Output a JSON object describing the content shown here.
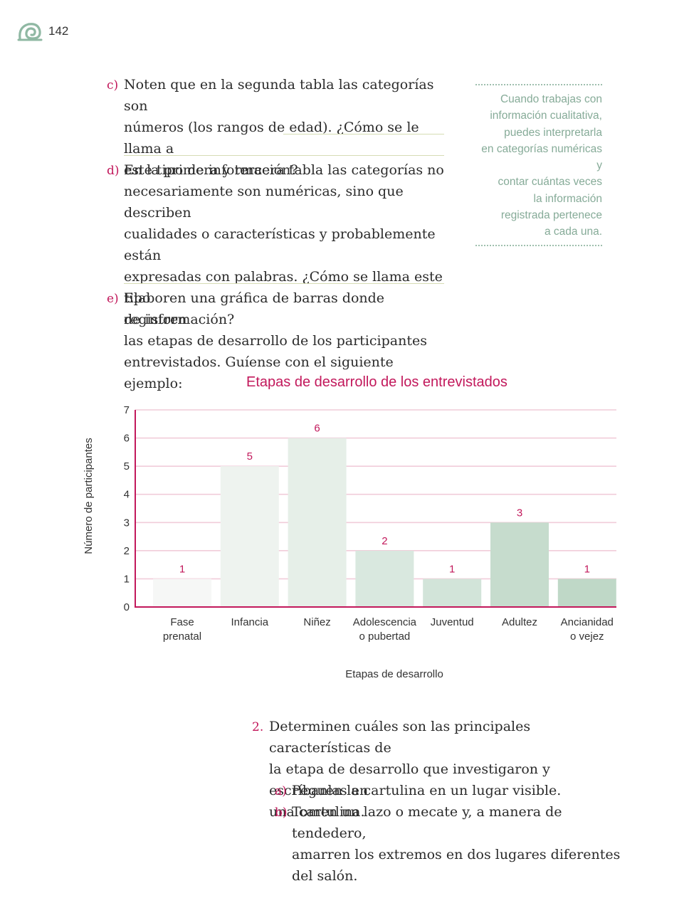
{
  "header": {
    "page_number": "142"
  },
  "items": {
    "c": {
      "marker": "c)",
      "lines": [
        "Noten que en la segunda tabla las categorías son",
        "números (los rangos de edad). ¿Cómo se le llama a",
        "este tipo de información?"
      ]
    },
    "d": {
      "marker": "d)",
      "lines": [
        "En la primera y tercera tabla las categorías no",
        "necesariamente son numéricas, sino que describen",
        "cualidades o características y probablemente están",
        "expresadas con palabras. ¿Cómo se llama este tipo",
        "de información?"
      ]
    },
    "e": {
      "marker": "e)",
      "lines": [
        "Elaboren una gráfica de barras donde registren",
        "las etapas de desarrollo de los participantes",
        "entrevistados. Guíense con el siguiente ejemplo:"
      ]
    }
  },
  "sidebar": {
    "lines": [
      "Cuando trabajas con",
      "información cualitativa,",
      "puedes interpretarla",
      "en categorías numéricas y",
      "contar cuántas veces",
      "la información",
      "registrada pertenece",
      "a cada una."
    ]
  },
  "chart_data": {
    "type": "bar",
    "title": "Etapas de desarrollo de los entrevistados",
    "xlabel": "Etapas de desarrollo",
    "ylabel": "Número de participantes",
    "categories": [
      "Fase prenatal",
      "Infancia",
      "Niñez",
      "Adolescencia o pubertad",
      "Juventud",
      "Adultez",
      "Ancianidad o vejez"
    ],
    "category_lines": [
      [
        "Fase",
        "prenatal"
      ],
      [
        "Infancia"
      ],
      [
        "Niñez"
      ],
      [
        "Adolescencia",
        "o pubertad"
      ],
      [
        "Juventud"
      ],
      [
        "Adultez"
      ],
      [
        "Ancianidad",
        "o vejez"
      ]
    ],
    "values": [
      1,
      5,
      6,
      2,
      1,
      3,
      1
    ],
    "ylim": [
      0,
      7
    ],
    "yticks": [
      0,
      1,
      2,
      3,
      4,
      5,
      6,
      7
    ],
    "grid": true,
    "bar_colors": [
      "#f6f7f6",
      "#eef3ef",
      "#e6efe8",
      "#d9e8df",
      "#d2e4d9",
      "#c6dccd",
      "#bfd8c7"
    ],
    "gridline_color": "#f1ccd9",
    "axis_color": "#c2185b"
  },
  "item2": {
    "marker": "2.",
    "lines": [
      "Determinen cuáles son las principales características de",
      "la etapa de desarrollo que investigaron y escríbanlas en",
      "una cartulina."
    ],
    "subitems": [
      {
        "marker": "a)",
        "lines": [
          "Peguen la cartulina en un lugar visible."
        ]
      },
      {
        "marker": "b)",
        "lines": [
          "Tomen un lazo o mecate y, a manera de tendedero,",
          "amarren los extremos en dos lugares diferentes",
          "del salón."
        ]
      }
    ]
  },
  "colors": {
    "accent": "#c2185b",
    "sidebar_text": "#86ab98",
    "rule": "#d6dcb4"
  }
}
